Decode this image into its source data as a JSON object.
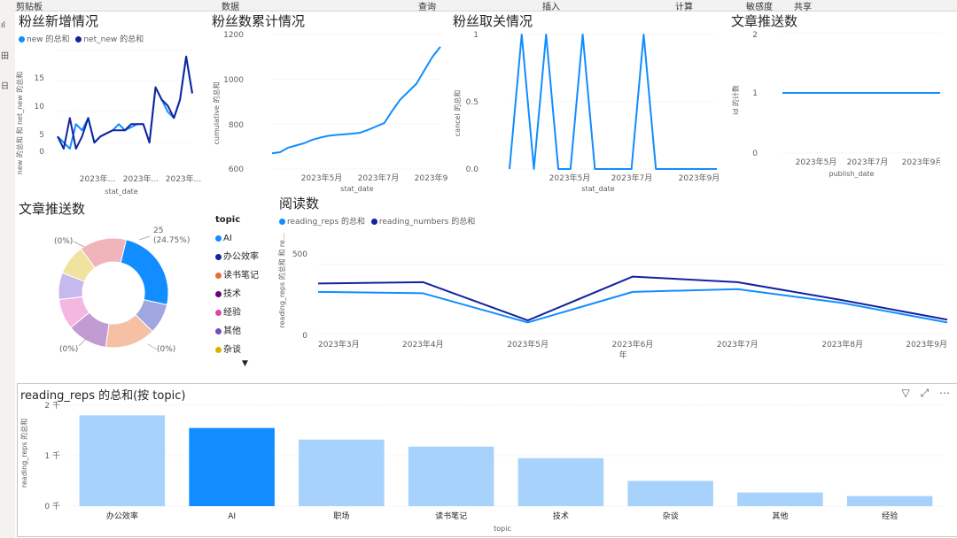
{
  "ribbon": {
    "items": [
      "剪贴板",
      "数据",
      "查询",
      "插入",
      "计算",
      "敏感度",
      "共享"
    ]
  },
  "left_rail": {
    "items": [
      "ıl",
      "田",
      "日"
    ]
  },
  "fans_new": {
    "title": "粉丝新增情况",
    "legend": [
      "new 的总和",
      "net_new 的总和"
    ],
    "ylabel": "new 的总和 和 net_new 的总和",
    "xlabel": "stat_date",
    "yticks": [
      "15",
      "10",
      "5",
      "0"
    ],
    "xticks": [
      "2023年...",
      "2023年...",
      "2023年..."
    ]
  },
  "fans_cum": {
    "title": "粉丝数累计情况",
    "ylabel": "cumulative 的总和",
    "xlabel": "stat_date",
    "yticks": [
      "1200",
      "1000",
      "800",
      "600"
    ],
    "xticks": [
      "2023年5月",
      "2023年7月",
      "2023年9月"
    ]
  },
  "fans_cancel": {
    "title": "粉丝取关情况",
    "ylabel": "cancel 的总和",
    "xlabel": "stat_date",
    "yticks": [
      "1",
      "0.5",
      "0.0"
    ],
    "xticks": [
      "2023年5月",
      "2023年7月",
      "2023年9月"
    ]
  },
  "articles_count": {
    "title": "文章推送数",
    "ylabel": "id 的计数",
    "xlabel": "publish_date",
    "yticks": [
      "2",
      "1",
      "0"
    ],
    "xticks": [
      "2023年5月",
      "2023年7月",
      "2023年9月"
    ]
  },
  "donut": {
    "title": "文章推送数",
    "labels": {
      "top_value": "25",
      "top_pct": "(24.75%)",
      "zero": "(0%)"
    },
    "legend_title": "topic",
    "legend": [
      {
        "label": "AI",
        "color": "#118DFF"
      },
      {
        "label": "办公效率",
        "color": "#12239E"
      },
      {
        "label": "读书笔记",
        "color": "#E66C37"
      },
      {
        "label": "技术",
        "color": "#6B007B"
      },
      {
        "label": "经验",
        "color": "#E044A7"
      },
      {
        "label": "其他",
        "color": "#744EC2"
      },
      {
        "label": "杂谈",
        "color": "#D9B300"
      }
    ],
    "more_icon": "triangle-down-icon"
  },
  "reads": {
    "title": "阅读数",
    "legend": [
      "reading_reps 的总和",
      "reading_numbers 的总和"
    ],
    "ylabel": "reading_reps 的总和 和 re...",
    "xlabel": "年",
    "yticks": [
      "500",
      "0"
    ],
    "xticks": [
      "2023年3月",
      "2023年4月",
      "2023年5月",
      "2023年6月",
      "2023年7月",
      "2023年8月",
      "2023年9月"
    ]
  },
  "topic_bar": {
    "title": "reading_reps 的总和(按 topic)",
    "ylabel": "reading_reps 的总和",
    "xlabel": "topic",
    "yticks": [
      "2 千",
      "1 千",
      "0 千"
    ],
    "icons": [
      "filter-icon",
      "focus-mode-icon",
      "more-options-icon"
    ]
  },
  "chart_data": [
    {
      "type": "line",
      "title": "粉丝新增情况",
      "xlabel": "stat_date",
      "ylabel": "new 的总和 和 net_new 的总和",
      "ylim": [
        -2,
        15
      ],
      "x": [
        1,
        2,
        3,
        4,
        5,
        6,
        7,
        8,
        9,
        10,
        11,
        12,
        13,
        14,
        15,
        16,
        17,
        18,
        19,
        20,
        21,
        22,
        23
      ],
      "series": [
        {
          "name": "new 的总和",
          "values": [
            1,
            0,
            -1,
            3,
            2,
            4,
            0,
            1,
            1.5,
            2,
            3,
            2,
            2.5,
            3,
            3,
            0,
            9,
            7,
            5,
            4,
            7,
            14,
            8
          ]
        },
        {
          "name": "net_new 的总和",
          "values": [
            1,
            -1,
            4,
            -1,
            1,
            4,
            0,
            1,
            1.5,
            2,
            2,
            2,
            3,
            3,
            3,
            0,
            9,
            7,
            6,
            4,
            7,
            14,
            8
          ]
        }
      ]
    },
    {
      "type": "line",
      "title": "粉丝数累计情况",
      "xlabel": "stat_date",
      "ylabel": "cumulative 的总和",
      "ylim": [
        600,
        1200
      ],
      "x": [
        1,
        2,
        3,
        4,
        5,
        6,
        7,
        8,
        9,
        10,
        11,
        12,
        13,
        14,
        15,
        16,
        17,
        18,
        19,
        20,
        21,
        22
      ],
      "series": [
        {
          "name": "cumulative 的总和",
          "values": [
            670,
            675,
            695,
            705,
            715,
            730,
            740,
            748,
            752,
            755,
            758,
            762,
            775,
            790,
            805,
            860,
            910,
            945,
            980,
            1040,
            1100,
            1145
          ]
        }
      ]
    },
    {
      "type": "line",
      "title": "粉丝取关情况",
      "xlabel": "stat_date",
      "ylabel": "cancel 的总和",
      "ylim": [
        0,
        1
      ],
      "x": [
        0,
        1,
        2,
        3,
        4,
        5,
        6,
        7,
        8,
        9,
        10,
        11,
        12,
        13,
        14,
        15,
        16,
        17
      ],
      "series": [
        {
          "name": "cancel 的总和",
          "values": [
            0,
            1,
            0,
            1,
            0,
            0,
            1,
            0,
            0,
            0,
            0,
            1,
            0,
            0,
            0,
            0,
            0,
            0
          ]
        }
      ]
    },
    {
      "type": "line",
      "title": "文章推送数",
      "xlabel": "publish_date",
      "ylabel": "id 的计数",
      "ylim": [
        0,
        2
      ],
      "x": [
        1,
        2,
        3,
        4,
        5,
        6,
        7
      ],
      "series": [
        {
          "name": "id 的计数",
          "values": [
            1,
            1,
            1,
            1,
            1,
            1,
            1
          ]
        }
      ]
    },
    {
      "type": "pie",
      "title": "文章推送数",
      "categories": [
        "AI",
        "办公效率",
        "读书笔记",
        "技术",
        "经验",
        "其他",
        "杂谈",
        "职场"
      ],
      "values": [
        25,
        9,
        15,
        12,
        9,
        8,
        9,
        14
      ]
    },
    {
      "type": "line",
      "title": "阅读数",
      "xlabel": "年",
      "ylabel": "reading_reps 的总和 和 re...",
      "ylim": [
        0,
        700
      ],
      "categories": [
        "2023年3月",
        "2023年4月",
        "2023年5月",
        "2023年6月",
        "2023年7月",
        "2023年8月",
        "2023年9月"
      ],
      "series": [
        {
          "name": "reading_reps 的总和",
          "values": [
            300,
            290,
            80,
            300,
            320,
            220,
            80
          ]
        },
        {
          "name": "reading_numbers 的总和",
          "values": [
            360,
            370,
            95,
            410,
            370,
            240,
            100
          ]
        }
      ]
    },
    {
      "type": "bar",
      "title": "reading_reps 的总和(按 topic)",
      "xlabel": "topic",
      "ylabel": "reading_reps 的总和",
      "ylim": [
        0,
        2000
      ],
      "categories": [
        "办公效率",
        "AI",
        "职场",
        "读书笔记",
        "技术",
        "杂谈",
        "其他",
        "经验"
      ],
      "values": [
        1800,
        1550,
        1320,
        1180,
        950,
        500,
        270,
        200
      ],
      "highlight": "AI"
    }
  ],
  "colors": {
    "light_blue": "#118DFF",
    "dark_blue": "#12239E",
    "bar_light": "#a6d2fb",
    "bar_selected": "#118DFF"
  }
}
